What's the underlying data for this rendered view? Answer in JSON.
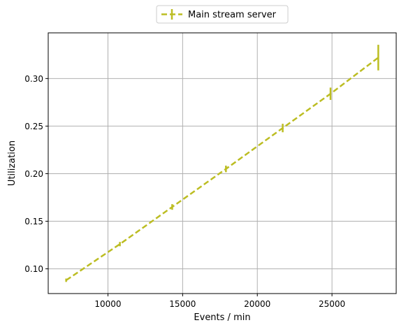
{
  "chart_data": {
    "type": "line",
    "title": "",
    "xlabel": "Events / min",
    "ylabel": "Utilization",
    "xlim": [
      6000,
      29300
    ],
    "ylim": [
      0.074,
      0.348
    ],
    "xticks": [
      10000,
      15000,
      20000,
      25000
    ],
    "yticks": [
      0.1,
      0.15,
      0.2,
      0.25,
      0.3
    ],
    "ytick_labels": [
      "0.10",
      "0.15",
      "0.20",
      "0.25",
      "0.30"
    ],
    "grid": true,
    "legend_position": "top-center",
    "series": [
      {
        "name": "Main stream server",
        "color": "#bcbd22",
        "linestyle": "dashed",
        "x": [
          7200,
          10800,
          14300,
          17900,
          21700,
          24900,
          28100
        ],
        "y": [
          0.088,
          0.126,
          0.165,
          0.205,
          0.248,
          0.284,
          0.322
        ],
        "yerr": [
          0.0003,
          0.0008,
          0.0015,
          0.002,
          0.003,
          0.005,
          0.012
        ]
      }
    ]
  }
}
